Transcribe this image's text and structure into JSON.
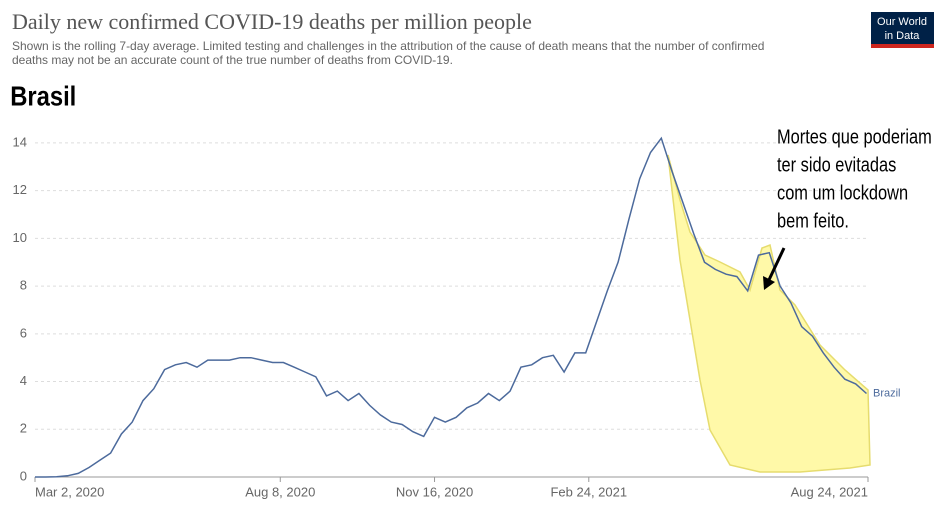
{
  "chart_data": {
    "type": "line",
    "title": "Daily new confirmed COVID-19 deaths per million people",
    "subtitle": [
      "Shown is the rolling 7-day average. Limited testing and challenges in the attribution of the cause of death means that the number of confirmed",
      "deaths may not be an accurate count of the true number of deaths from COVID-19."
    ],
    "heading": "Brasil",
    "logo": [
      "Our World",
      "in Data"
    ],
    "annotation": [
      "Mortes que poderiam",
      "ter sido evitadas",
      "com um lockdown",
      "bem feito."
    ],
    "x": [
      "2020-03-02",
      "2020-03-09",
      "2020-03-16",
      "2020-03-23",
      "2020-03-30",
      "2020-04-06",
      "2020-04-13",
      "2020-04-20",
      "2020-04-27",
      "2020-05-04",
      "2020-05-11",
      "2020-05-18",
      "2020-05-25",
      "2020-06-01",
      "2020-06-08",
      "2020-06-15",
      "2020-06-22",
      "2020-06-29",
      "2020-07-06",
      "2020-07-13",
      "2020-07-20",
      "2020-07-27",
      "2020-08-03",
      "2020-08-10",
      "2020-08-17",
      "2020-08-24",
      "2020-08-31",
      "2020-09-07",
      "2020-09-14",
      "2020-09-21",
      "2020-09-28",
      "2020-10-05",
      "2020-10-12",
      "2020-10-19",
      "2020-10-26",
      "2020-11-02",
      "2020-11-09",
      "2020-11-16",
      "2020-11-23",
      "2020-11-30",
      "2020-12-07",
      "2020-12-14",
      "2020-12-21",
      "2020-12-28",
      "2021-01-04",
      "2021-01-11",
      "2021-01-18",
      "2021-01-25",
      "2021-02-01",
      "2021-02-08",
      "2021-02-15",
      "2021-02-22",
      "2021-03-01",
      "2021-03-08",
      "2021-03-15",
      "2021-03-22",
      "2021-03-29",
      "2021-04-05",
      "2021-04-12",
      "2021-04-19",
      "2021-04-26",
      "2021-05-03",
      "2021-05-10",
      "2021-05-17",
      "2021-05-24",
      "2021-05-31",
      "2021-06-07",
      "2021-06-14",
      "2021-06-21",
      "2021-06-28",
      "2021-07-05",
      "2021-07-12",
      "2021-07-19",
      "2021-07-26",
      "2021-08-02",
      "2021-08-09",
      "2021-08-16",
      "2021-08-23"
    ],
    "series": [
      {
        "name": "Brazil",
        "color": "#4c6a9c",
        "values": [
          0,
          0,
          0.01,
          0.05,
          0.15,
          0.4,
          0.7,
          1.0,
          1.8,
          2.3,
          3.2,
          3.7,
          4.5,
          4.7,
          4.8,
          4.6,
          4.9,
          4.9,
          4.9,
          5.0,
          5.0,
          4.9,
          4.8,
          4.8,
          4.6,
          4.4,
          4.2,
          3.4,
          3.6,
          3.2,
          3.5,
          3.0,
          2.6,
          2.3,
          2.2,
          1.9,
          1.7,
          2.5,
          2.3,
          2.5,
          2.9,
          3.1,
          3.5,
          3.2,
          3.6,
          4.6,
          4.7,
          5.0,
          5.1,
          4.4,
          5.2,
          5.2,
          6.5,
          7.8,
          9.0,
          10.8,
          12.5,
          13.6,
          14.2,
          12.8,
          11.5,
          10.2,
          9.0,
          8.7,
          8.5,
          8.4,
          7.8,
          9.3,
          9.4,
          8.0,
          7.3,
          6.3,
          5.9,
          5.2,
          4.6,
          4.1,
          3.9,
          3.5
        ]
      }
    ],
    "xlim": [
      "2020-03-02",
      "2021-08-24"
    ],
    "xticks": [
      {
        "value": "2020-03-02",
        "label": "Mar 2, 2020"
      },
      {
        "value": "2020-08-08",
        "label": "Aug 8, 2020"
      },
      {
        "value": "2020-11-16",
        "label": "Nov 16, 2020"
      },
      {
        "value": "2021-02-24",
        "label": "Feb 24, 2021"
      },
      {
        "value": "2021-08-24",
        "label": "Aug 24, 2021"
      }
    ],
    "ylim": [
      0,
      14.5
    ],
    "yticks": [
      0,
      2,
      4,
      6,
      8,
      10,
      12,
      14
    ],
    "grid": true
  }
}
